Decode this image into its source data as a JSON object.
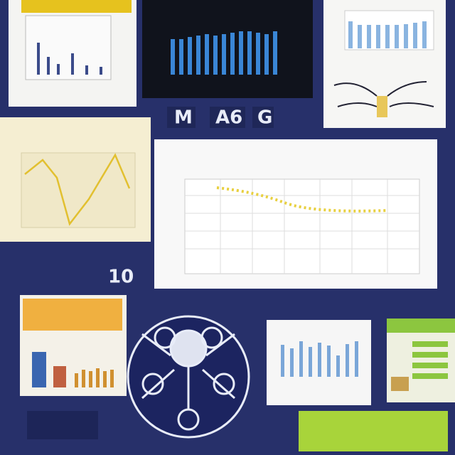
{
  "labels": {
    "top_row": [
      "M",
      "A6",
      "G"
    ],
    "left_number": "10"
  }
}
